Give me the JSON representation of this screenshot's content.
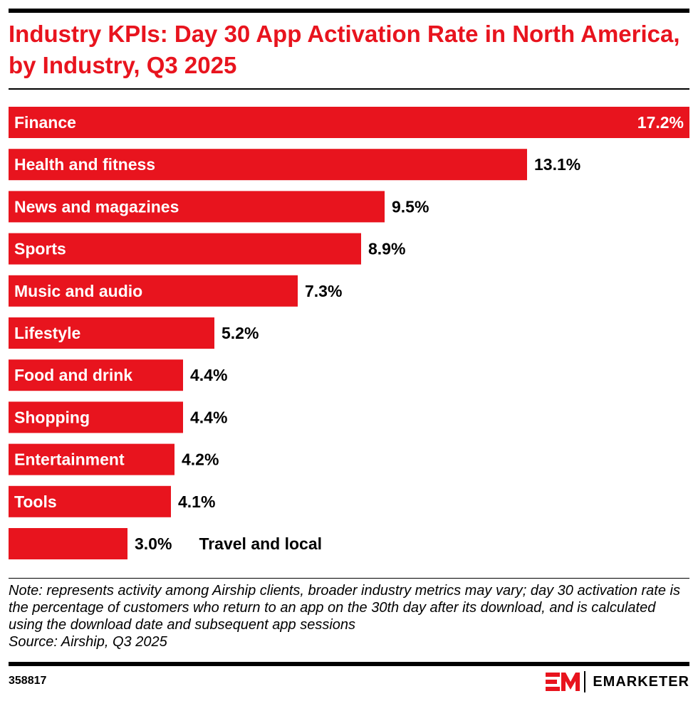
{
  "header": {
    "title": "Industry KPIs: Day 30 App Activation Rate in North America, by Industry, Q3 2025"
  },
  "chart_data": {
    "type": "bar",
    "orientation": "horizontal",
    "title": "Industry KPIs: Day 30 App Activation Rate in North America, by Industry, Q3 2025",
    "categories": [
      "Finance",
      "Health and fitness",
      "News and magazines",
      "Sports",
      "Music and audio",
      "Lifestyle",
      "Food and drink",
      "Shopping",
      "Entertainment",
      "Tools",
      "Travel and local"
    ],
    "values": [
      17.2,
      13.1,
      9.5,
      8.9,
      7.3,
      5.2,
      4.4,
      4.4,
      4.2,
      4.1,
      3.0
    ],
    "value_labels": [
      "17.2%",
      "13.1%",
      "9.5%",
      "8.9%",
      "7.3%",
      "5.2%",
      "4.4%",
      "4.4%",
      "4.2%",
      "4.1%",
      "3.0%"
    ],
    "unit": "%",
    "xlim": [
      0,
      17.2
    ],
    "xlabel": "",
    "ylabel": "",
    "grid": false,
    "bar_color": "#e8141e"
  },
  "footer": {
    "note": "Note: represents activity among Airship clients, broader industry metrics may vary; day 30 activation rate is the percentage of customers who return to an app on the 30th day after its download, and is calculated using the download date and subsequent app sessions",
    "source": "Source: Airship, Q3 2025",
    "chart_id": "358817",
    "brand_name": "EMARKETER",
    "brand_mark": "EM",
    "brand_color": "#e8141e"
  }
}
